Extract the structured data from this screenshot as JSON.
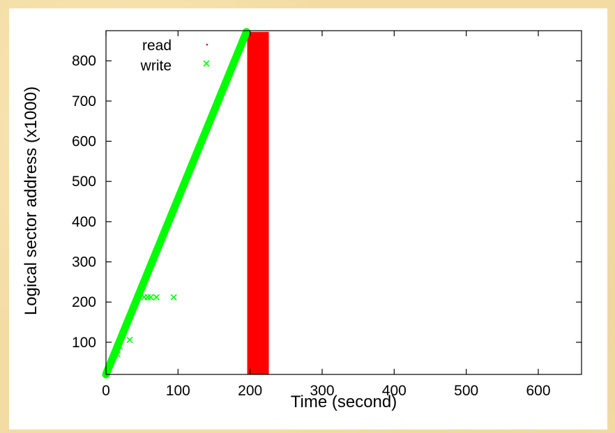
{
  "chart_data": {
    "type": "scatter",
    "xlabel": "Time (second)",
    "ylabel": "Logical sector address (x1000)",
    "xlim": [
      0,
      660
    ],
    "ylim": [
      20,
      875
    ],
    "x_ticks": [
      0,
      100,
      200,
      300,
      400,
      500,
      600
    ],
    "y_ticks": [
      100,
      200,
      300,
      400,
      500,
      600,
      700,
      800
    ],
    "x_tick_labels": [
      "0",
      "100",
      "200",
      "300",
      "400",
      "500",
      "600"
    ],
    "y_tick_labels": [
      "100",
      "200",
      "300",
      "400",
      "500",
      "600",
      "700",
      "800"
    ],
    "grid": false,
    "legend_position": "top-left",
    "series": [
      {
        "name": "read",
        "marker": "dot",
        "color": "#ff0000",
        "region": {
          "x": [
            196,
            226
          ],
          "y": [
            20,
            872
          ]
        }
      },
      {
        "name": "write",
        "marker": "x",
        "color": "#00ff00",
        "band": [
          [
            0,
            20
          ],
          [
            195,
            872
          ]
        ],
        "points": [
          [
            33,
            106
          ],
          [
            53,
            212
          ],
          [
            58,
            212
          ],
          [
            62,
            212
          ],
          [
            70,
            212
          ],
          [
            94,
            212
          ],
          [
            16,
            70
          ],
          [
            19,
            90
          ]
        ]
      }
    ]
  },
  "colors": {
    "background": "#f3dca4",
    "plot_background": "#ffffff",
    "axis": "#000000"
  }
}
